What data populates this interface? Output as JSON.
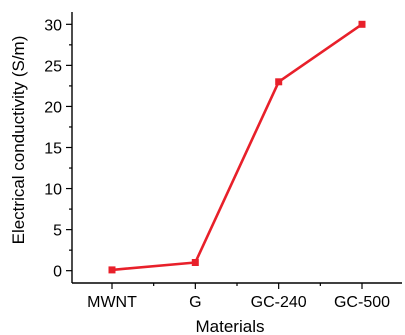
{
  "chart_data": {
    "type": "line",
    "title": "",
    "xlabel": "Materials",
    "ylabel": "Electrical conductivity (S/m)",
    "categories": [
      "MWNT",
      "G",
      "GC-240",
      "GC-500"
    ],
    "series": [
      {
        "values": [
          0.1,
          1.0,
          23.0,
          30.0
        ]
      }
    ],
    "ylim": [
      -1.5,
      31.5
    ],
    "yticks": [
      "0",
      "5",
      "10",
      "15",
      "20",
      "25",
      "30"
    ],
    "grid": false,
    "legend": "none",
    "line_color": "#e8202a",
    "marker_color": "#e8202a",
    "marker": "square"
  }
}
